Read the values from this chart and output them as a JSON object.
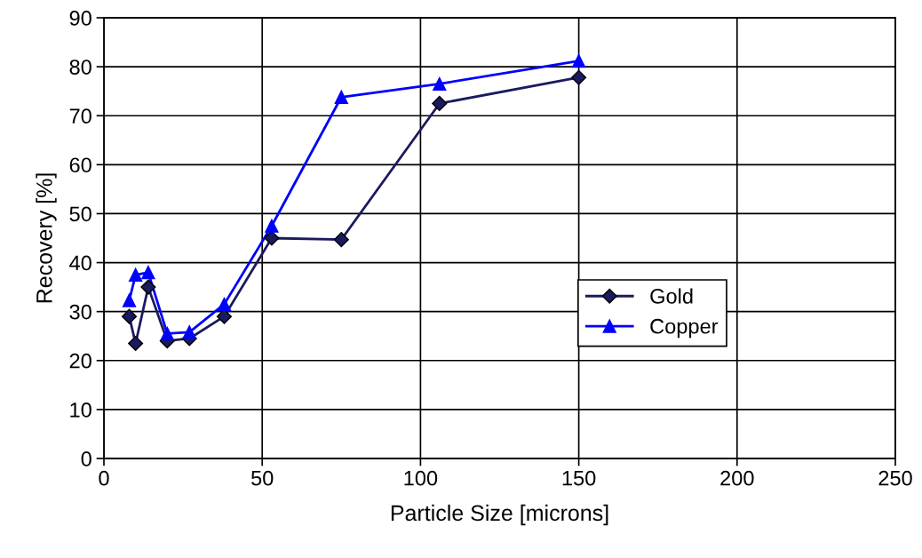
{
  "chart_data": {
    "type": "line",
    "xlabel": "Particle Size [microns]",
    "ylabel": "Recovery [%]",
    "xlim": [
      0,
      250
    ],
    "xticks": [
      0,
      50,
      100,
      150,
      200,
      250
    ],
    "ylim": [
      0,
      90
    ],
    "yticks": [
      0,
      10,
      20,
      30,
      40,
      50,
      60,
      70,
      80,
      90
    ],
    "grid": true,
    "legend": "right",
    "line_style": "solid",
    "series": [
      {
        "name": "Gold",
        "color": "#1a1a5e",
        "marker": "diamond",
        "x": [
          8,
          10,
          14,
          20,
          27,
          38,
          53,
          75,
          106,
          150
        ],
        "values": [
          29,
          23.5,
          35,
          24,
          24.5,
          29,
          45,
          44.7,
          72.5,
          77.8
        ]
      },
      {
        "name": "Copper",
        "color": "#0000ff",
        "marker": "triangle",
        "x": [
          8,
          10,
          14,
          20,
          27,
          38,
          53,
          75,
          106,
          150
        ],
        "values": [
          32.3,
          37.5,
          38,
          25.5,
          25.8,
          31.5,
          47.5,
          73.8,
          76.5,
          81.2
        ]
      }
    ]
  }
}
